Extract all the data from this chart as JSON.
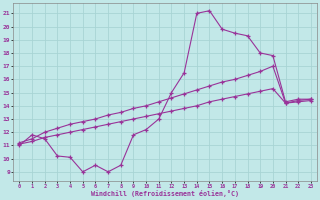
{
  "xlabel": "Windchill (Refroidissement éolien,°C)",
  "x_ticks": [
    0,
    1,
    2,
    3,
    4,
    5,
    6,
    7,
    8,
    9,
    10,
    11,
    12,
    13,
    14,
    15,
    16,
    17,
    18,
    19,
    20,
    21,
    22,
    23
  ],
  "y_ticks": [
    9,
    10,
    11,
    12,
    13,
    14,
    15,
    16,
    17,
    18,
    19,
    20,
    21
  ],
  "ylim": [
    8.3,
    21.8
  ],
  "xlim": [
    -0.5,
    23.5
  ],
  "bg_color": "#c2e8e8",
  "grid_color": "#a8d4d4",
  "line_color": "#993399",
  "line1_y": [
    11.0,
    11.8,
    11.5,
    10.2,
    10.1,
    9.0,
    9.5,
    9.0,
    9.5,
    11.8,
    12.2,
    13.0,
    15.0,
    16.5,
    21.0,
    21.2,
    19.8,
    19.5,
    19.3,
    18.0,
    17.8,
    14.3,
    14.5,
    14.5
  ],
  "line2_y": [
    11.2,
    11.5,
    12.0,
    12.3,
    12.6,
    12.8,
    13.0,
    13.3,
    13.5,
    13.8,
    14.0,
    14.3,
    14.6,
    14.9,
    15.2,
    15.5,
    15.8,
    16.0,
    16.3,
    16.6,
    17.0,
    14.2,
    14.4,
    14.5
  ],
  "line3_y": [
    11.1,
    11.3,
    11.6,
    11.8,
    12.0,
    12.2,
    12.4,
    12.6,
    12.8,
    13.0,
    13.2,
    13.4,
    13.6,
    13.8,
    14.0,
    14.3,
    14.5,
    14.7,
    14.9,
    15.1,
    15.3,
    14.2,
    14.3,
    14.4
  ]
}
